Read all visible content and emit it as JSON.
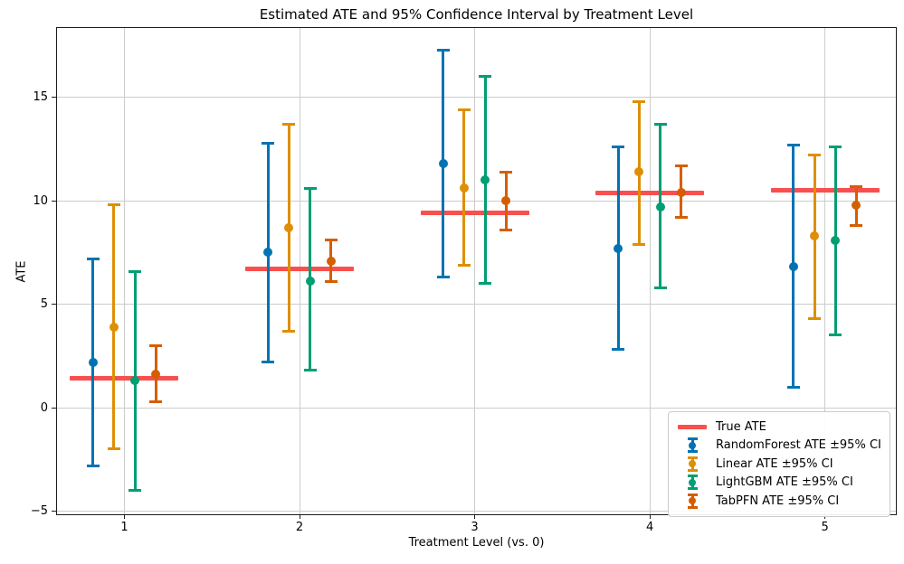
{
  "chart_data": {
    "type": "errorbar",
    "title": "Estimated ATE and 95% Confidence Interval by Treatment Level",
    "xlabel": "Treatment Level (vs. 0)",
    "ylabel": "ATE",
    "xlim": [
      0.61,
      5.41
    ],
    "ylim": [
      -5.2,
      18.4
    ],
    "x_ticks": [
      1,
      2,
      3,
      4,
      5
    ],
    "x_tick_labels": [
      "1",
      "2",
      "3",
      "4",
      "5"
    ],
    "y_ticks": [
      -5,
      0,
      5,
      10,
      15
    ],
    "y_tick_labels": [
      "−5",
      "0",
      "5",
      "10",
      "15"
    ],
    "grid": true,
    "legend_position": "lower right",
    "true_ate": {
      "label": "True ATE",
      "values": [
        1.4,
        6.7,
        9.4,
        10.4,
        10.5
      ],
      "half_width": 0.31,
      "color": "#f94f4f"
    },
    "series": [
      {
        "key": "randomforest",
        "name": "RandomForest ATE ±95% CI",
        "color": "#0173b2",
        "x_offset": -0.18,
        "ate": [
          2.2,
          7.5,
          11.8,
          7.7,
          6.8
        ],
        "ci_low": [
          -2.8,
          2.2,
          6.3,
          2.8,
          1.0
        ],
        "ci_high": [
          7.2,
          12.8,
          17.3,
          12.6,
          12.7
        ]
      },
      {
        "key": "linear",
        "name": "Linear ATE ±95% CI",
        "color": "#de8f05",
        "x_offset": -0.06,
        "ate": [
          3.9,
          8.7,
          10.6,
          11.4,
          8.3
        ],
        "ci_low": [
          -2.0,
          3.7,
          6.9,
          7.9,
          4.3
        ],
        "ci_high": [
          9.8,
          13.7,
          14.4,
          14.8,
          12.2
        ]
      },
      {
        "key": "lightgbm",
        "name": "LightGBM ATE ±95% CI",
        "color": "#029e73",
        "x_offset": 0.06,
        "ate": [
          1.3,
          6.1,
          11.0,
          9.7,
          8.1
        ],
        "ci_low": [
          -4.0,
          1.8,
          6.0,
          5.8,
          3.5
        ],
        "ci_high": [
          6.6,
          10.6,
          16.0,
          13.7,
          12.6
        ]
      },
      {
        "key": "tabpfn",
        "name": "TabPFN ATE ±95% CI",
        "color": "#d55e00",
        "x_offset": 0.18,
        "ate": [
          1.6,
          7.1,
          10.0,
          10.4,
          9.8
        ],
        "ci_low": [
          0.3,
          6.1,
          8.6,
          9.2,
          8.8
        ],
        "ci_high": [
          3.0,
          8.1,
          11.4,
          11.7,
          10.7
        ]
      }
    ],
    "colors": {
      "grid": "#cccccc",
      "axis": "#1c1c1c",
      "text": "#000000"
    }
  }
}
